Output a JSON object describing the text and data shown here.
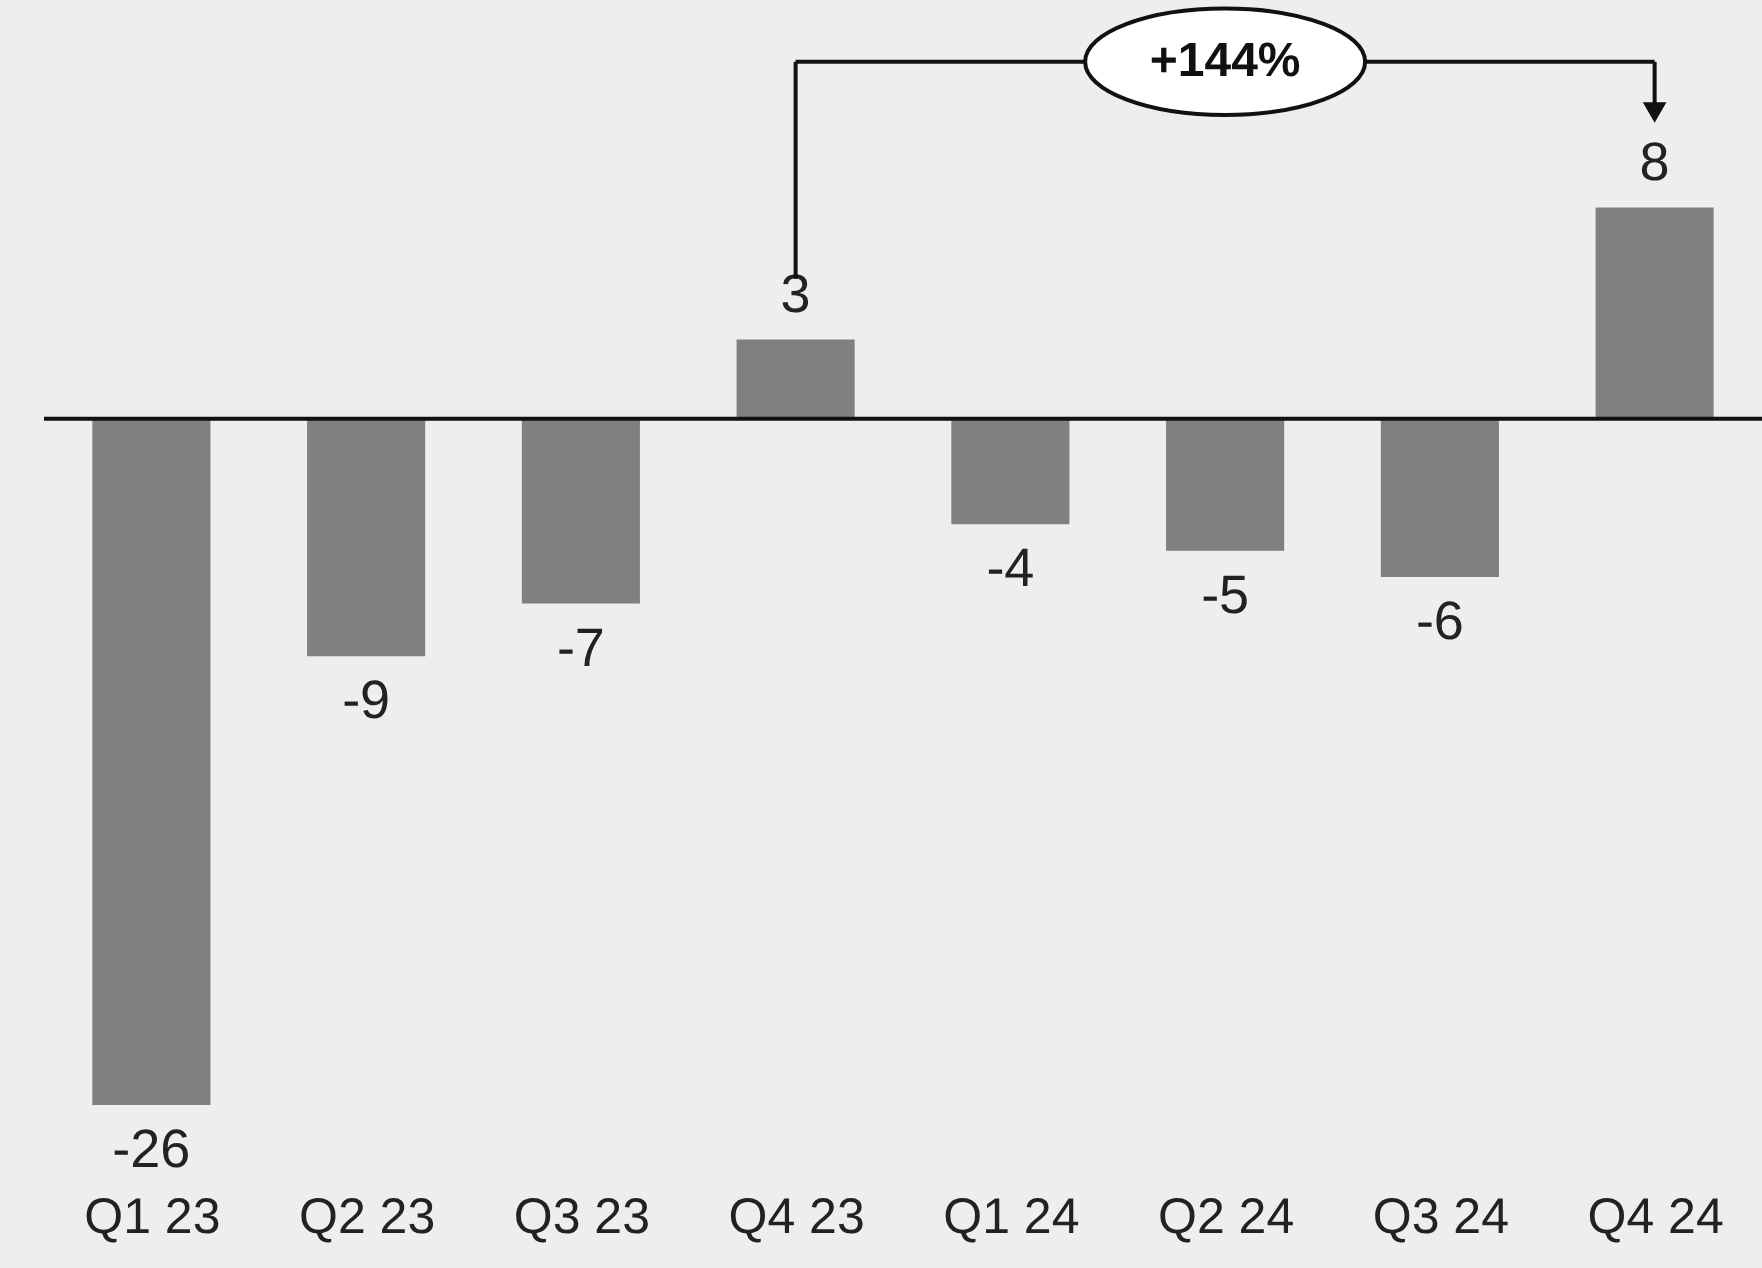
{
  "chart_data": {
    "type": "bar",
    "categories": [
      "Q1 23",
      "Q2 23",
      "Q3 23",
      "Q4 23",
      "Q1 24",
      "Q2 24",
      "Q3 24",
      "Q4 24"
    ],
    "values": [
      -26,
      -9,
      -7,
      3,
      -4,
      -5,
      -6,
      8
    ],
    "color": "#808080",
    "data_labels": true,
    "annotations": [
      "+144%"
    ]
  }
}
